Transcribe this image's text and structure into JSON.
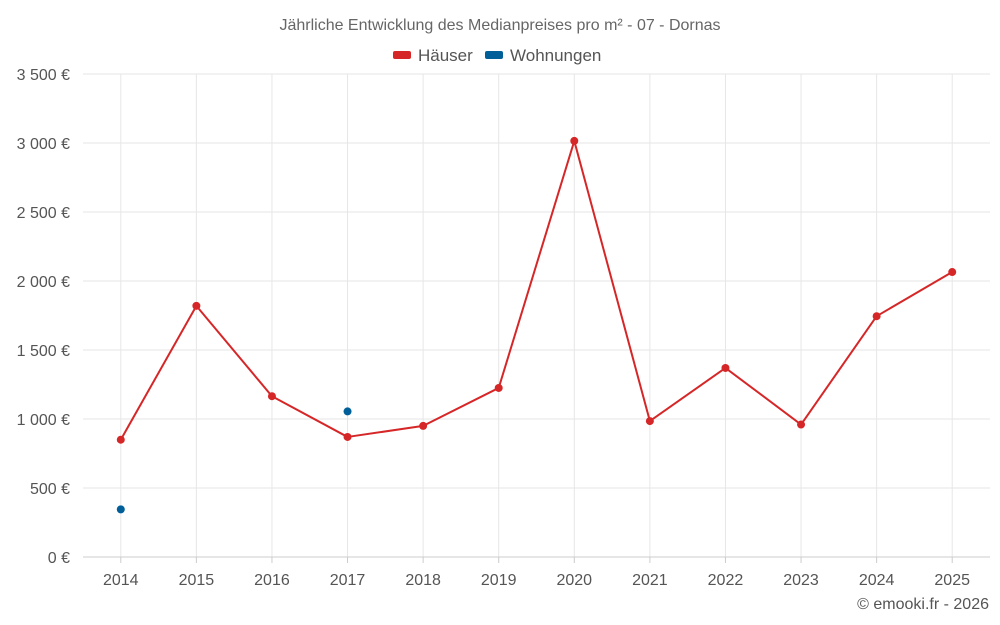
{
  "chart_data": {
    "type": "line",
    "title": "Jährliche Entwicklung des Medianpreises pro m² - 07 - Dornas",
    "categories": [
      "2014",
      "2015",
      "2016",
      "2017",
      "2018",
      "2019",
      "2020",
      "2021",
      "2022",
      "2023",
      "2024",
      "2025"
    ],
    "series": [
      {
        "name": "Häuser",
        "color": "#d62728",
        "values": [
          850,
          1820,
          1165,
          870,
          950,
          1225,
          3015,
          985,
          1370,
          960,
          1745,
          2065
        ]
      },
      {
        "name": "Wohnungen",
        "color": "#005f99",
        "values": [
          345,
          null,
          null,
          1055,
          null,
          null,
          null,
          null,
          null,
          null,
          null,
          null
        ]
      }
    ],
    "y_ticks": [
      0,
      500,
      1000,
      1500,
      2000,
      2500,
      3000,
      3500
    ],
    "y_tick_labels": [
      "0 €",
      "500 €",
      "1 000 €",
      "1 500 €",
      "2 000 €",
      "2 500 €",
      "3 000 €",
      "3 500 €"
    ],
    "ylim": [
      0,
      3500
    ],
    "xlabel": "",
    "ylabel": "",
    "grid": true,
    "legend_position": "top-center"
  },
  "credit": "© emooki.fr - 2026"
}
